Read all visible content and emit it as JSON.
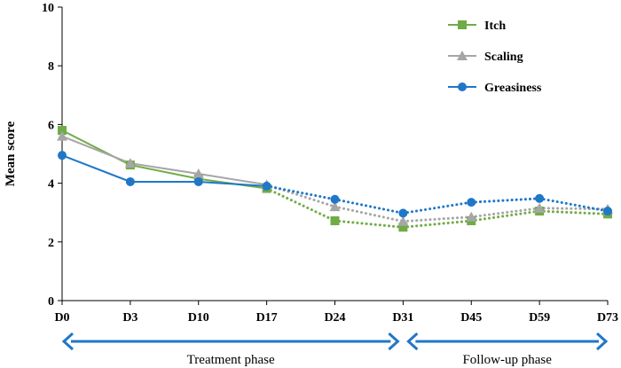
{
  "chart_data": {
    "type": "line",
    "title": "",
    "xlabel": "",
    "ylabel": "Mean score",
    "categories": [
      "D0",
      "D3",
      "D10",
      "D17",
      "D24",
      "D31",
      "D45",
      "D59",
      "D73"
    ],
    "ylim": [
      0,
      10
    ],
    "yticks": [
      0,
      2,
      4,
      6,
      8,
      10
    ],
    "grid": false,
    "legend_position": "top-right",
    "solid_until_category": "D17",
    "series": [
      {
        "name": "Itch",
        "color": "#6fac46",
        "marker": "square",
        "values": [
          5.8,
          4.62,
          4.15,
          3.82,
          2.72,
          2.5,
          2.72,
          3.05,
          2.95
        ]
      },
      {
        "name": "Scaling",
        "color": "#a6a6a6",
        "marker": "triangle",
        "values": [
          5.6,
          4.68,
          4.32,
          3.95,
          3.2,
          2.7,
          2.85,
          3.15,
          3.12
        ]
      },
      {
        "name": "Greasiness",
        "color": "#1f77c8",
        "marker": "circle",
        "values": [
          4.95,
          4.05,
          4.05,
          3.9,
          3.45,
          2.98,
          3.35,
          3.48,
          3.05
        ]
      }
    ],
    "phases": [
      {
        "label": "Treatment phase",
        "from": "D0",
        "to": "D31",
        "color": "#1f77c8"
      },
      {
        "label": "Follow-up phase",
        "from": "D31",
        "to": "D73",
        "color": "#1f77c8"
      }
    ]
  }
}
